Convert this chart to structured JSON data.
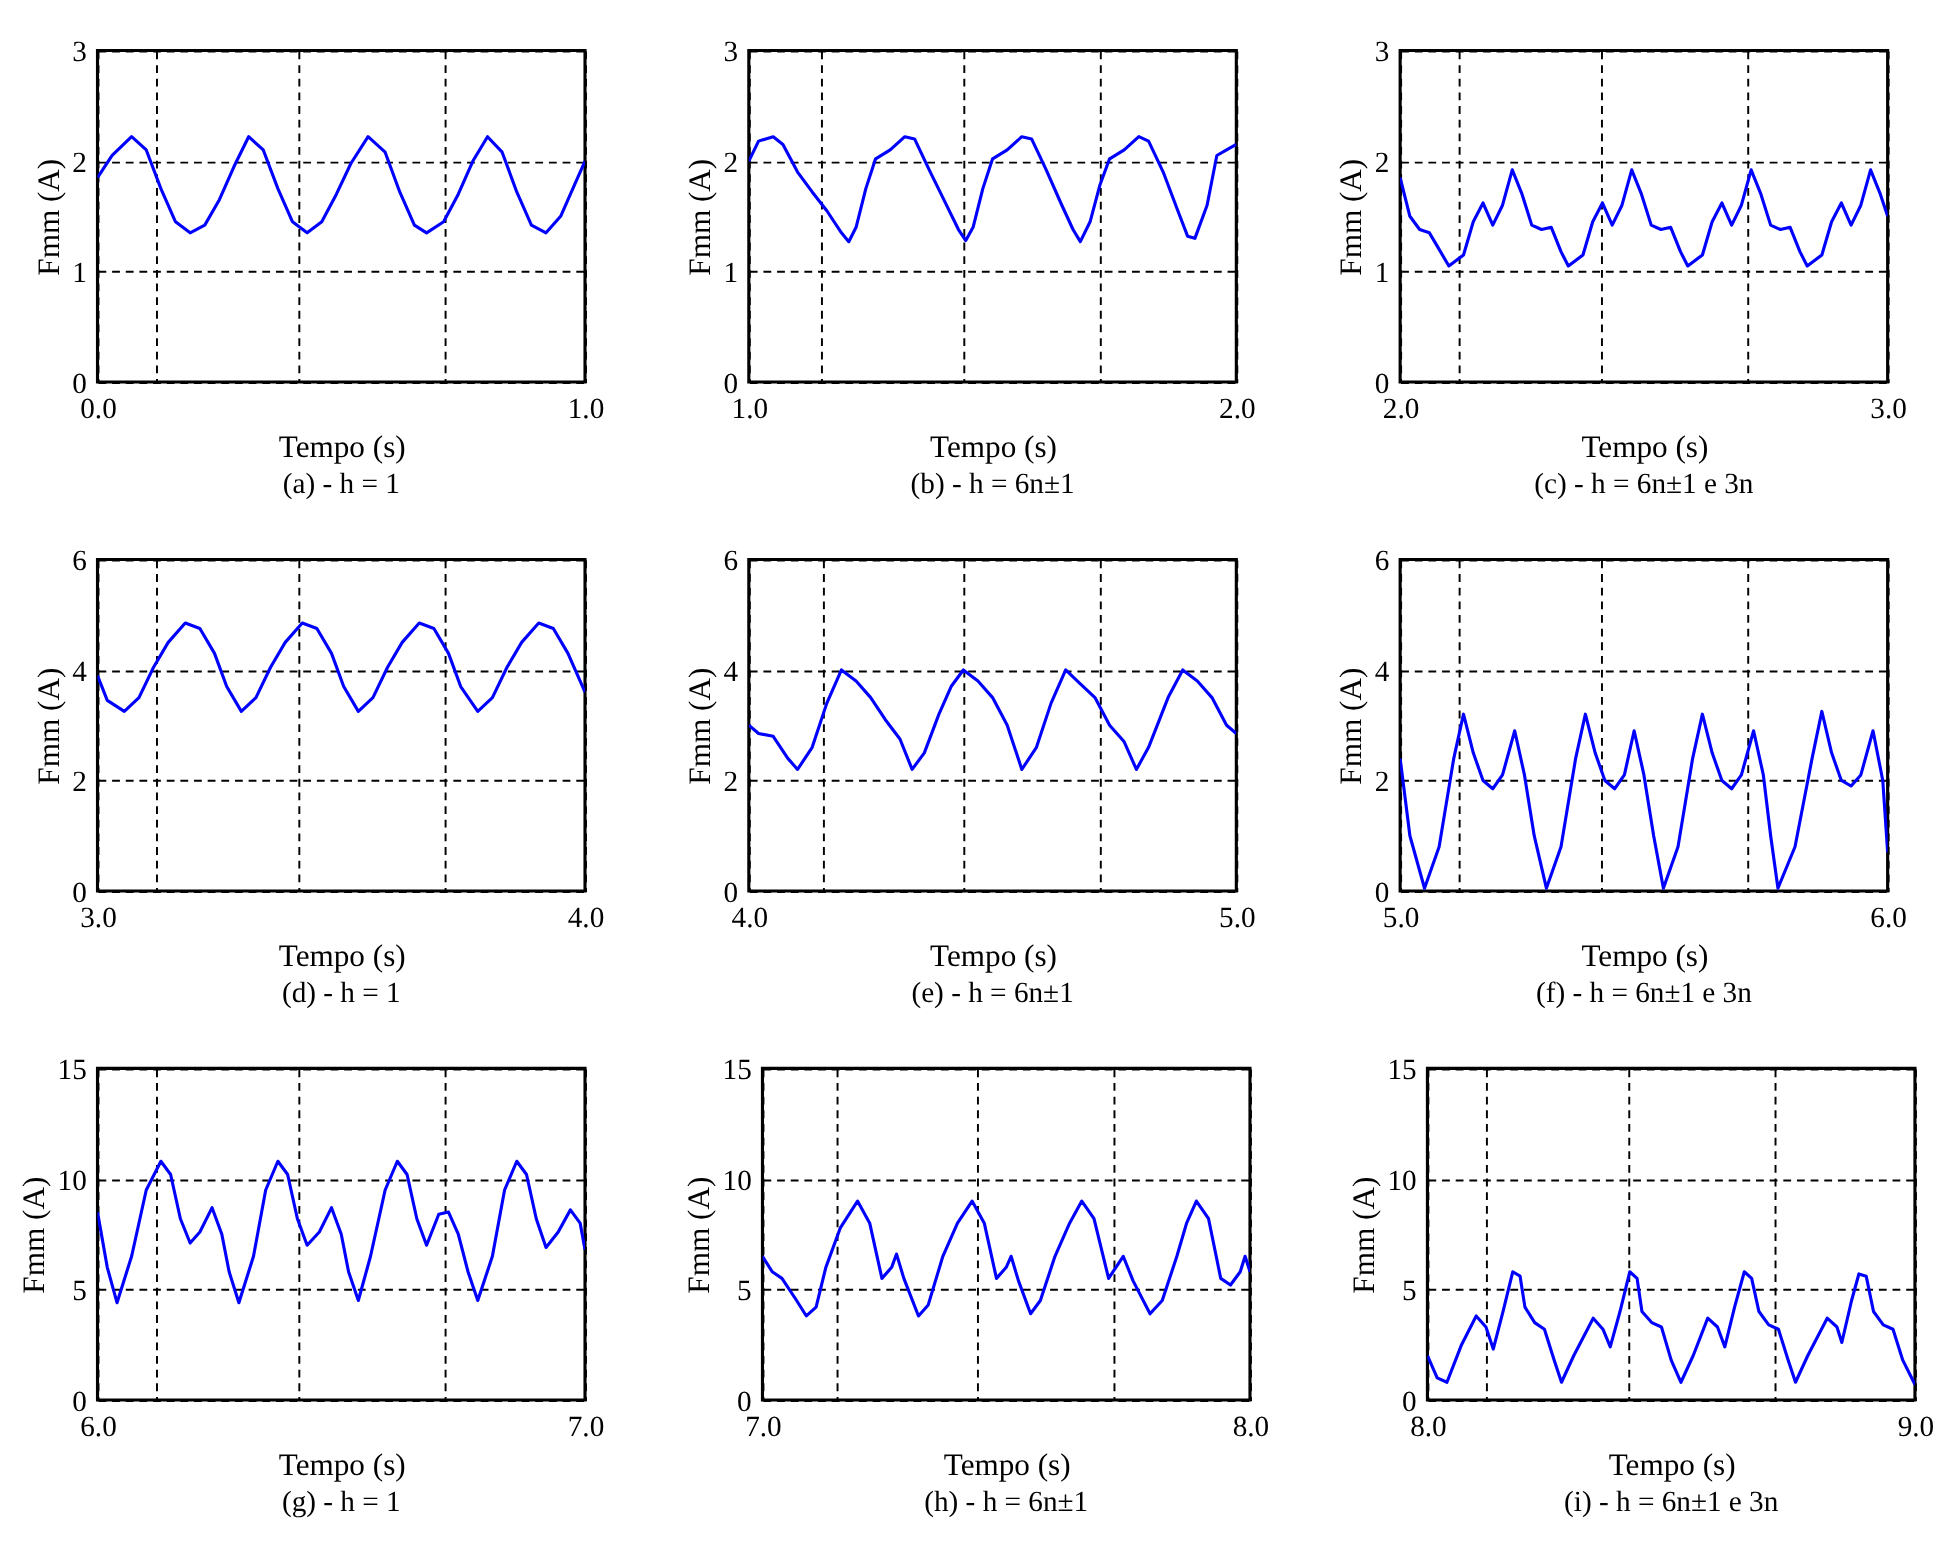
{
  "chart_data": [
    {
      "type": "line",
      "title": "(a) - h = 1",
      "xlabel": "Tempo (s)",
      "ylabel": "Fmm (A)",
      "grid": true,
      "xlim": [
        0,
        1
      ],
      "ylim": [
        0,
        3
      ],
      "xticks": [
        {
          "value": 0,
          "label": "0.0"
        },
        {
          "value": 0.12,
          "label": null
        },
        {
          "value": 0.41,
          "label": null
        },
        {
          "value": 0.71,
          "label": null
        },
        {
          "value": 1,
          "label": "1.0"
        }
      ],
      "yticks": [
        0,
        1,
        2,
        3
      ],
      "x": [
        0,
        0.03,
        0.07,
        0.1,
        0.13,
        0.16,
        0.19,
        0.22,
        0.25,
        0.28,
        0.31,
        0.34,
        0.37,
        0.4,
        0.43,
        0.46,
        0.49,
        0.52,
        0.555,
        0.59,
        0.62,
        0.65,
        0.675,
        0.71,
        0.74,
        0.77,
        0.8,
        0.83,
        0.86,
        0.89,
        0.92,
        0.95,
        0.98,
        1.0
      ],
      "series": [
        {
          "color": "#0000ff",
          "values": [
            1.85,
            2.05,
            2.22,
            2.1,
            1.75,
            1.45,
            1.35,
            1.42,
            1.65,
            1.95,
            2.22,
            2.1,
            1.75,
            1.45,
            1.35,
            1.45,
            1.7,
            1.98,
            2.22,
            2.08,
            1.72,
            1.42,
            1.35,
            1.45,
            1.7,
            2.0,
            2.22,
            2.08,
            1.72,
            1.42,
            1.35,
            1.5,
            1.8,
            2.0
          ]
        }
      ]
    },
    {
      "type": "line",
      "title": "(b) - h = 6n±1",
      "xlabel": "Tempo (s)",
      "ylabel": "Fmm (A)",
      "grid": true,
      "xlim": [
        1,
        2
      ],
      "ylim": [
        0,
        3
      ],
      "xticks": [
        {
          "value": 1,
          "label": "1.0"
        },
        {
          "value": 1.15,
          "label": null
        },
        {
          "value": 1.44,
          "label": null
        },
        {
          "value": 1.72,
          "label": null
        },
        {
          "value": 2,
          "label": "2.0"
        }
      ],
      "yticks": [
        0,
        1,
        2,
        3
      ],
      "x": [
        1.0,
        1.02,
        1.05,
        1.07,
        1.1,
        1.13,
        1.16,
        1.19,
        1.205,
        1.22,
        1.24,
        1.26,
        1.29,
        1.32,
        1.34,
        1.37,
        1.4,
        1.43,
        1.445,
        1.46,
        1.48,
        1.5,
        1.53,
        1.56,
        1.58,
        1.61,
        1.64,
        1.665,
        1.68,
        1.7,
        1.72,
        1.74,
        1.77,
        1.8,
        1.82,
        1.85,
        1.88,
        1.9,
        1.915,
        1.94,
        1.96,
        1.98,
        2.0
      ],
      "series": [
        {
          "color": "#0000ff",
          "values": [
            2.0,
            2.18,
            2.22,
            2.15,
            1.9,
            1.72,
            1.55,
            1.35,
            1.27,
            1.4,
            1.75,
            2.02,
            2.1,
            2.22,
            2.2,
            1.92,
            1.65,
            1.38,
            1.28,
            1.4,
            1.75,
            2.02,
            2.1,
            2.22,
            2.2,
            1.92,
            1.62,
            1.38,
            1.27,
            1.45,
            1.78,
            2.02,
            2.1,
            2.22,
            2.18,
            1.9,
            1.55,
            1.32,
            1.3,
            1.6,
            2.05,
            2.1,
            2.15
          ]
        }
      ]
    },
    {
      "type": "line",
      "title": "(c) - h = 6n±1 e 3n",
      "xlabel": "Tempo (s)",
      "ylabel": "Fmm (A)",
      "grid": true,
      "xlim": [
        2,
        3
      ],
      "ylim": [
        0,
        3
      ],
      "xticks": [
        {
          "value": 2,
          "label": "2.0"
        },
        {
          "value": 2.12,
          "label": null
        },
        {
          "value": 2.41,
          "label": null
        },
        {
          "value": 2.71,
          "label": null
        },
        {
          "value": 3,
          "label": "3.0"
        }
      ],
      "yticks": [
        0,
        1,
        2,
        3
      ],
      "x": [
        2.0,
        2.02,
        2.04,
        2.06,
        2.08,
        2.1,
        2.13,
        2.15,
        2.17,
        2.19,
        2.21,
        2.23,
        2.25,
        2.27,
        2.29,
        2.31,
        2.33,
        2.345,
        2.375,
        2.395,
        2.415,
        2.435,
        2.455,
        2.475,
        2.495,
        2.515,
        2.535,
        2.555,
        2.575,
        2.59,
        2.62,
        2.64,
        2.66,
        2.68,
        2.7,
        2.72,
        2.74,
        2.76,
        2.78,
        2.8,
        2.82,
        2.835,
        2.865,
        2.885,
        2.905,
        2.925,
        2.945,
        2.965,
        2.985,
        3.0
      ],
      "series": [
        {
          "color": "#0000ff",
          "values": [
            1.85,
            1.5,
            1.38,
            1.35,
            1.2,
            1.05,
            1.15,
            1.45,
            1.62,
            1.42,
            1.6,
            1.92,
            1.7,
            1.42,
            1.38,
            1.4,
            1.18,
            1.05,
            1.15,
            1.45,
            1.62,
            1.42,
            1.6,
            1.92,
            1.7,
            1.42,
            1.38,
            1.4,
            1.18,
            1.05,
            1.15,
            1.45,
            1.62,
            1.42,
            1.6,
            1.92,
            1.7,
            1.42,
            1.38,
            1.4,
            1.18,
            1.05,
            1.15,
            1.45,
            1.62,
            1.42,
            1.6,
            1.92,
            1.7,
            1.5
          ]
        }
      ]
    },
    {
      "type": "line",
      "title": "(d) - h = 1",
      "xlabel": "Tempo (s)",
      "ylabel": "Fmm (A)",
      "grid": true,
      "xlim": [
        3,
        4
      ],
      "ylim": [
        0,
        6
      ],
      "xticks": [
        {
          "value": 3,
          "label": "3.0"
        },
        {
          "value": 3.12,
          "label": null
        },
        {
          "value": 3.41,
          "label": null
        },
        {
          "value": 3.71,
          "label": null
        },
        {
          "value": 4,
          "label": "4.0"
        }
      ],
      "yticks": [
        0,
        2,
        4,
        6
      ],
      "x": [
        3.0,
        3.02,
        3.055,
        3.085,
        3.115,
        3.145,
        3.18,
        3.21,
        3.24,
        3.265,
        3.295,
        3.325,
        3.355,
        3.385,
        3.42,
        3.45,
        3.48,
        3.505,
        3.535,
        3.565,
        3.595,
        3.625,
        3.66,
        3.69,
        3.72,
        3.745,
        3.78,
        3.81,
        3.84,
        3.87,
        3.905,
        3.935,
        3.965,
        4.0
      ],
      "series": [
        {
          "color": "#0000ff",
          "values": [
            3.9,
            3.45,
            3.25,
            3.5,
            4.05,
            4.5,
            4.85,
            4.75,
            4.3,
            3.7,
            3.25,
            3.5,
            4.05,
            4.5,
            4.85,
            4.75,
            4.3,
            3.7,
            3.25,
            3.5,
            4.05,
            4.5,
            4.85,
            4.75,
            4.3,
            3.7,
            3.25,
            3.5,
            4.05,
            4.5,
            4.85,
            4.75,
            4.3,
            3.6
          ]
        }
      ]
    },
    {
      "type": "line",
      "title": "(e) - h = 6n±1",
      "xlabel": "Tempo (s)",
      "ylabel": "Fmm (A)",
      "grid": true,
      "xlim": [
        4,
        5
      ],
      "ylim": [
        0,
        6
      ],
      "xticks": [
        {
          "value": 4,
          "label": "4.0"
        },
        {
          "value": 4.15,
          "label": null
        },
        {
          "value": 4.44,
          "label": null
        },
        {
          "value": 4.72,
          "label": null
        },
        {
          "value": 5,
          "label": "5.0"
        }
      ],
      "yticks": [
        0,
        2,
        4,
        6
      ],
      "x": [
        4.0,
        4.02,
        4.05,
        4.08,
        4.1,
        4.13,
        4.16,
        4.19,
        4.22,
        4.25,
        4.28,
        4.31,
        4.335,
        4.36,
        4.39,
        4.415,
        4.44,
        4.47,
        4.5,
        4.53,
        4.56,
        4.59,
        4.62,
        4.65,
        4.68,
        4.71,
        4.74,
        4.77,
        4.795,
        4.82,
        4.86,
        4.89,
        4.92,
        4.95,
        4.98,
        5.0
      ],
      "series": [
        {
          "color": "#0000ff",
          "values": [
            3.0,
            2.85,
            2.8,
            2.4,
            2.2,
            2.6,
            3.4,
            4.0,
            3.8,
            3.5,
            3.1,
            2.75,
            2.2,
            2.5,
            3.2,
            3.7,
            4.0,
            3.8,
            3.5,
            3.0,
            2.2,
            2.6,
            3.4,
            4.0,
            3.75,
            3.5,
            3.0,
            2.7,
            2.2,
            2.6,
            3.5,
            4.0,
            3.8,
            3.5,
            3.0,
            2.85
          ]
        }
      ]
    },
    {
      "type": "line",
      "title": "(f) - h = 6n±1 e 3n",
      "xlabel": "Tempo (s)",
      "ylabel": "Fmm (A)",
      "grid": true,
      "xlim": [
        5,
        6
      ],
      "ylim": [
        0,
        6
      ],
      "xticks": [
        {
          "value": 5,
          "label": "5.0"
        },
        {
          "value": 5.12,
          "label": null
        },
        {
          "value": 5.41,
          "label": null
        },
        {
          "value": 5.71,
          "label": null
        },
        {
          "value": 6,
          "label": "6.0"
        }
      ],
      "yticks": [
        0,
        2,
        4,
        6
      ],
      "x": [
        5.0,
        5.02,
        5.05,
        5.08,
        5.11,
        5.13,
        5.15,
        5.17,
        5.19,
        5.21,
        5.235,
        5.255,
        5.275,
        5.3,
        5.33,
        5.36,
        5.38,
        5.4,
        5.42,
        5.44,
        5.46,
        5.48,
        5.5,
        5.52,
        5.54,
        5.57,
        5.6,
        5.62,
        5.64,
        5.66,
        5.68,
        5.7,
        5.725,
        5.745,
        5.76,
        5.775,
        5.81,
        5.845,
        5.865,
        5.885,
        5.905,
        5.925,
        5.945,
        5.97,
        5.99,
        6.0
      ],
      "series": [
        {
          "color": "#0000ff",
          "values": [
            2.4,
            1.0,
            0.05,
            0.8,
            2.4,
            3.2,
            2.5,
            2.0,
            1.85,
            2.1,
            2.9,
            2.1,
            1.0,
            0.05,
            0.8,
            2.4,
            3.2,
            2.5,
            2.0,
            1.85,
            2.1,
            2.9,
            2.1,
            1.0,
            0.05,
            0.8,
            2.4,
            3.2,
            2.5,
            2.0,
            1.85,
            2.1,
            2.9,
            2.1,
            1.0,
            0.05,
            0.8,
            2.4,
            3.25,
            2.5,
            2.0,
            1.9,
            2.1,
            2.9,
            2.0,
            0.7
          ]
        }
      ]
    },
    {
      "type": "line",
      "title": "(g) - h = 1",
      "xlabel": "Tempo (s)",
      "ylabel": "Fmm (A)",
      "grid": true,
      "xlim": [
        6,
        7
      ],
      "ylim": [
        0,
        15
      ],
      "xticks": [
        {
          "value": 6,
          "label": "6.0"
        },
        {
          "value": 6.12,
          "label": null
        },
        {
          "value": 6.41,
          "label": null
        },
        {
          "value": 6.71,
          "label": null
        },
        {
          "value": 7,
          "label": "7.0"
        }
      ],
      "yticks": [
        0,
        5,
        10,
        15
      ],
      "x": [
        6.0,
        6.02,
        6.04,
        6.07,
        6.1,
        6.13,
        6.15,
        6.17,
        6.19,
        6.21,
        6.235,
        6.255,
        6.27,
        6.29,
        6.32,
        6.345,
        6.37,
        6.39,
        6.41,
        6.43,
        6.455,
        6.48,
        6.5,
        6.515,
        6.535,
        6.56,
        6.59,
        6.615,
        6.635,
        6.655,
        6.675,
        6.7,
        6.72,
        6.74,
        6.76,
        6.78,
        6.81,
        6.835,
        6.86,
        6.88,
        6.9,
        6.92,
        6.945,
        6.97,
        6.99,
        7.0
      ],
      "series": [
        {
          "color": "#0000ff",
          "values": [
            8.5,
            6.0,
            4.4,
            6.5,
            9.5,
            10.8,
            10.2,
            8.2,
            7.1,
            7.6,
            8.7,
            7.5,
            5.8,
            4.4,
            6.5,
            9.5,
            10.8,
            10.2,
            8.2,
            7.0,
            7.6,
            8.7,
            7.5,
            5.8,
            4.5,
            6.5,
            9.5,
            10.8,
            10.2,
            8.2,
            7.0,
            8.4,
            8.5,
            7.5,
            5.8,
            4.5,
            6.5,
            9.5,
            10.8,
            10.2,
            8.2,
            6.9,
            7.6,
            8.6,
            8.0,
            6.8
          ]
        }
      ]
    },
    {
      "type": "line",
      "title": "(h) - h = 6n±1",
      "xlabel": "Tempo (s)",
      "ylabel": "Fmm (A)",
      "grid": true,
      "xlim": [
        7,
        8
      ],
      "ylim": [
        0,
        15
      ],
      "xticks": [
        {
          "value": 7,
          "label": "7.0"
        },
        {
          "value": 7.15,
          "label": null
        },
        {
          "value": 7.44,
          "label": null
        },
        {
          "value": 7.72,
          "label": null
        },
        {
          "value": 8,
          "label": "8.0"
        }
      ],
      "yticks": [
        0,
        5,
        10,
        15
      ],
      "x": [
        7.0,
        7.02,
        7.04,
        7.07,
        7.09,
        7.11,
        7.13,
        7.16,
        7.195,
        7.22,
        7.245,
        7.265,
        7.275,
        7.29,
        7.32,
        7.34,
        7.37,
        7.4,
        7.43,
        7.455,
        7.48,
        7.5,
        7.51,
        7.525,
        7.55,
        7.57,
        7.6,
        7.63,
        7.655,
        7.68,
        7.71,
        7.725,
        7.74,
        7.76,
        7.795,
        7.82,
        7.85,
        7.87,
        7.89,
        7.915,
        7.94,
        7.96,
        7.98,
        7.99,
        8.0
      ],
      "series": [
        {
          "color": "#0000ff",
          "values": [
            6.5,
            5.8,
            5.5,
            4.5,
            3.8,
            4.2,
            6.0,
            7.8,
            9.0,
            8.0,
            5.5,
            6.0,
            6.6,
            5.5,
            3.8,
            4.3,
            6.5,
            8.0,
            9.0,
            8.0,
            5.5,
            6.0,
            6.5,
            5.4,
            3.9,
            4.5,
            6.5,
            8.0,
            9.0,
            8.2,
            5.5,
            6.0,
            6.5,
            5.4,
            3.9,
            4.5,
            6.5,
            8.0,
            9.0,
            8.2,
            5.5,
            5.2,
            5.8,
            6.5,
            5.8
          ]
        }
      ]
    },
    {
      "type": "line",
      "title": "(i) - h = 6n±1 e 3n",
      "xlabel": "Tempo (s)",
      "ylabel": "Fmm (A)",
      "grid": true,
      "xlim": [
        8,
        9
      ],
      "ylim": [
        0,
        15
      ],
      "xticks": [
        {
          "value": 8,
          "label": "8.0"
        },
        {
          "value": 8.12,
          "label": null
        },
        {
          "value": 8.41,
          "label": null
        },
        {
          "value": 8.71,
          "label": null
        },
        {
          "value": 9,
          "label": "9.0"
        }
      ],
      "yticks": [
        0,
        5,
        10,
        15
      ],
      "x": [
        8.0,
        8.02,
        8.04,
        8.07,
        8.1,
        8.12,
        8.135,
        8.155,
        8.175,
        8.19,
        8.2,
        8.22,
        8.24,
        8.26,
        8.275,
        8.3,
        8.34,
        8.36,
        8.375,
        8.395,
        8.415,
        8.43,
        8.44,
        8.46,
        8.48,
        8.5,
        8.52,
        8.545,
        8.575,
        8.595,
        8.61,
        8.63,
        8.65,
        8.665,
        8.68,
        8.7,
        8.72,
        8.74,
        8.755,
        8.78,
        8.82,
        8.84,
        8.85,
        8.87,
        8.885,
        8.9,
        8.915,
        8.935,
        8.955,
        8.975,
        9.0
      ],
      "series": [
        {
          "color": "#0000ff",
          "values": [
            2.0,
            1.0,
            0.8,
            2.5,
            3.8,
            3.3,
            2.3,
            4.0,
            5.8,
            5.6,
            4.2,
            3.5,
            3.2,
            1.8,
            0.8,
            2.0,
            3.7,
            3.2,
            2.4,
            4.0,
            5.8,
            5.5,
            4.0,
            3.5,
            3.3,
            1.8,
            0.8,
            2.0,
            3.7,
            3.3,
            2.4,
            4.2,
            5.8,
            5.5,
            4.0,
            3.4,
            3.2,
            1.8,
            0.8,
            2.0,
            3.7,
            3.3,
            2.6,
            4.5,
            5.7,
            5.6,
            4.0,
            3.4,
            3.2,
            1.8,
            0.7
          ]
        }
      ]
    }
  ]
}
